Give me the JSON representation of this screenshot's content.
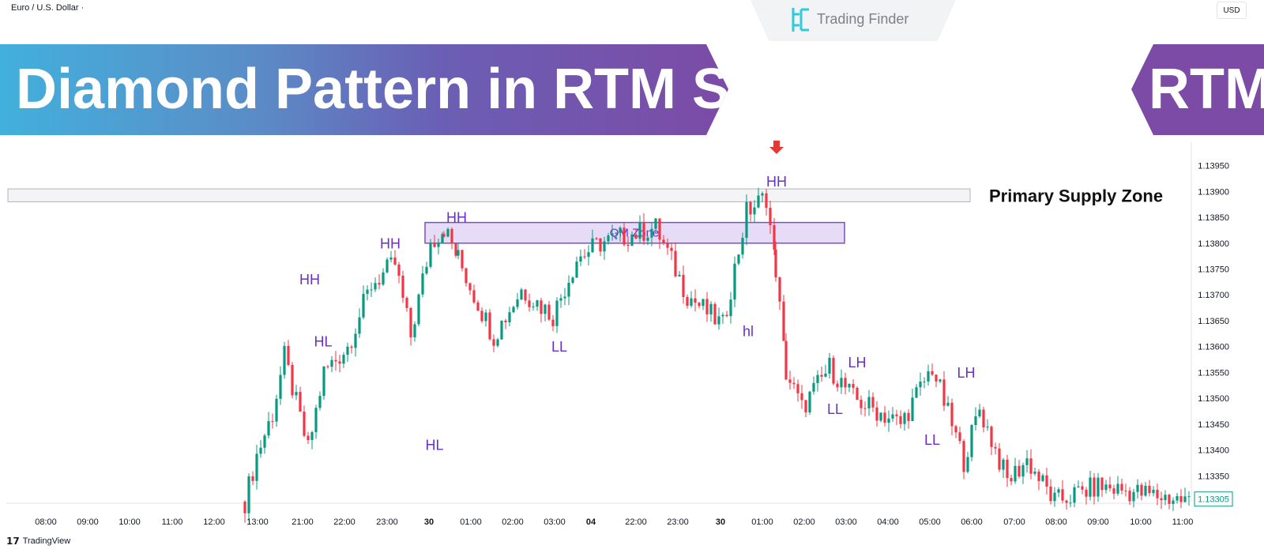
{
  "header": {
    "symbol": "Euro / U.S. Dollar ·",
    "currency_button": "USD",
    "brand": "Trading Finder",
    "footer_brand": "TradingView"
  },
  "banner": {
    "title": "Diamond Pattern in RTM Style",
    "badge": "RTM",
    "gradient": [
      "#42b0dc",
      "#7c4ba6"
    ]
  },
  "chart_data": {
    "type": "candlestick",
    "symbol": "EURUSD",
    "ylim": [
      1.133,
      1.1398
    ],
    "last_price": "1.13305",
    "y_ticks": [
      "1.13950",
      "1.13900",
      "1.13850",
      "1.13800",
      "1.13750",
      "1.13700",
      "1.13650",
      "1.13600",
      "1.13550",
      "1.13500",
      "1.13450",
      "1.13400",
      "1.13350"
    ],
    "x_labels": [
      "08:00",
      "09:00",
      "10:00",
      "11:00",
      "12:00",
      "13:00",
      "21:00",
      "22:00",
      "23:00",
      "30",
      "01:00",
      "02:00",
      "03:00",
      "04",
      "22:00",
      "23:00",
      "30",
      "01:00",
      "02:00",
      "03:00",
      "04:00",
      "05:00",
      "06:00",
      "07:00",
      "08:00",
      "09:00",
      "10:00",
      "11:00"
    ],
    "key_prices": [
      1.133,
      1.1339,
      1.1347,
      1.1358,
      1.134,
      1.1355,
      1.136,
      1.1372,
      1.1376,
      1.1362,
      1.138,
      1.1383,
      1.1377,
      1.137,
      1.1362,
      1.1371,
      1.1366,
      1.1377,
      1.138,
      1.1383,
      1.137,
      1.1364,
      1.1386,
      1.1389,
      1.1375,
      1.1355,
      1.1348,
      1.1356,
      1.135,
      1.1348,
      1.1345,
      1.1356,
      1.1338,
      1.1348,
      1.1334,
      1.1338,
      1.133,
      1.1333,
      1.133
    ],
    "annotations": [
      {
        "text": "HH",
        "price": 1.1372
      },
      {
        "text": "HH",
        "price": 1.1379
      },
      {
        "text": "HH",
        "price": 1.1384
      },
      {
        "text": "HH",
        "price": 1.1391
      },
      {
        "text": "HL",
        "price": 1.134
      },
      {
        "text": "HL",
        "price": 1.136
      },
      {
        "text": "LL",
        "price": 1.1359
      },
      {
        "text": "hl",
        "price": 1.1362
      },
      {
        "text": "LL",
        "price": 1.1347
      },
      {
        "text": "LH",
        "price": 1.1356
      },
      {
        "text": "LL",
        "price": 1.1341
      },
      {
        "text": "LH",
        "price": 1.1354
      }
    ],
    "zones": [
      {
        "label": "QM Zone",
        "from": 1.138,
        "to": 1.1384
      },
      {
        "label": "",
        "from": 1.1388,
        "to": 1.13905
      }
    ],
    "zone_label": "Primary Supply Zone",
    "colors": {
      "up": "#089981",
      "down": "#f23645",
      "label": "#6a2fc8",
      "zone_border": "#7a4fc8",
      "zone_fill": "#e6dcf8",
      "arrow": "#e53935"
    }
  }
}
